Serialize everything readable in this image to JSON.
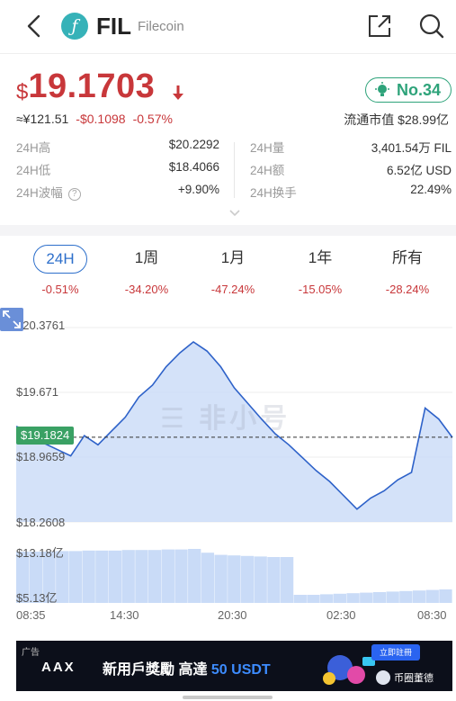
{
  "header": {
    "logo_glyph": "ƒ",
    "symbol": "FIL",
    "name": "Filecoin",
    "icons": [
      "back-arrow-icon",
      "share-icon",
      "search-icon"
    ]
  },
  "price": {
    "currency_symbol": "$",
    "value": "19.1703",
    "direction": "down",
    "cny_approx": "≈¥121.51",
    "change_abs": "-$0.1098",
    "change_pct": "-0.57%",
    "rank": "No.34",
    "market_cap": "流通市值 $28.99亿"
  },
  "stats_left": [
    {
      "label": "24H高",
      "value": "$20.2292"
    },
    {
      "label": "24H低",
      "value": "$18.4066"
    },
    {
      "label": "24H波幅",
      "value": "+9.90%"
    }
  ],
  "stats_right": [
    {
      "label": "24H量",
      "value": "3,401.54万 FIL"
    },
    {
      "label": "24H额",
      "value": "6.52亿 USD"
    },
    {
      "label": "24H换手",
      "value": "22.49%"
    }
  ],
  "periods": [
    {
      "label": "24H",
      "change": "-0.51%",
      "active": true
    },
    {
      "label": "1周",
      "change": "-34.20%",
      "active": false
    },
    {
      "label": "1月",
      "change": "-47.24%",
      "active": false
    },
    {
      "label": "1年",
      "change": "-15.05%",
      "active": false
    },
    {
      "label": "所有",
      "change": "-28.24%",
      "active": false
    }
  ],
  "chart": {
    "y_labels": [
      "$20.3761",
      "$19.671",
      "$18.9659",
      "$18.2608"
    ],
    "current_price_tag": "$19.1824",
    "volume_labels": [
      "$13.18亿",
      "$5.13亿"
    ],
    "time_labels": [
      "08:35",
      "14:30",
      "20:30",
      "02:30",
      "08:30"
    ],
    "watermark": "☰ 非小号"
  },
  "chart_data": {
    "type": "area",
    "ylim": [
      18.2608,
      20.3761
    ],
    "current": 19.1824,
    "price_series": [
      19.3,
      19.25,
      19.12,
      19.05,
      18.98,
      19.2,
      19.1,
      19.25,
      19.4,
      19.62,
      19.75,
      19.95,
      20.1,
      20.22,
      20.12,
      19.95,
      19.72,
      19.55,
      19.38,
      19.22,
      19.1,
      18.96,
      18.82,
      18.7,
      18.55,
      18.4,
      18.52,
      18.6,
      18.72,
      18.8,
      19.5,
      19.38,
      19.18
    ],
    "volume_ylabels": [
      "$13.18亿",
      "$5.13亿"
    ],
    "volume_series": [
      0.95,
      0.95,
      0.95,
      0.96,
      0.96,
      0.97,
      0.97,
      0.97,
      0.98,
      0.98,
      0.98,
      0.99,
      0.99,
      1.0,
      0.93,
      0.89,
      0.88,
      0.87,
      0.86,
      0.85,
      0.85,
      0.15,
      0.15,
      0.16,
      0.17,
      0.18,
      0.19,
      0.2,
      0.21,
      0.22,
      0.23,
      0.24,
      0.25
    ]
  },
  "ad": {
    "tag": "广告",
    "brand": "AAX",
    "text_main": "新用戶獎勵 高達 ",
    "text_accent": "50 USDT",
    "button": "立即註冊",
    "source": "币圈董德"
  },
  "colors": {
    "price_down": "#c8373a",
    "rank_green": "#2ea37a",
    "active_blue": "#2d6fcb",
    "chart_line": "#2e62c9",
    "chart_fill": "#c9dbf7",
    "price_tag_green": "#3aa164"
  }
}
